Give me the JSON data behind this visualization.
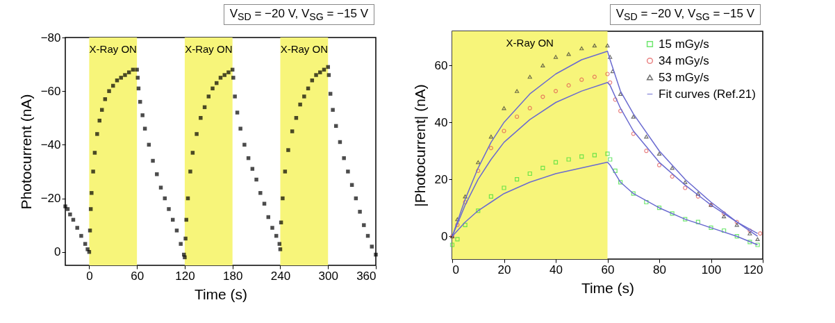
{
  "chart_data": [
    {
      "type": "scatter",
      "xlabel": "Time (s)",
      "ylabel": "Photocurrent (nA)",
      "annotations": [
        "V$_{SD}$ = −20 V, V$_{SG}$ = −15 V"
      ],
      "xlim": [
        -30,
        360
      ],
      "xticks": [
        0,
        60,
        120,
        180,
        240,
        300,
        360
      ],
      "ylim": [
        5,
        -80
      ],
      "yticks": [
        {
          "value": -80,
          "label": "−80"
        },
        {
          "value": -60,
          "label": "−60"
        },
        {
          "value": -40,
          "label": "−40"
        },
        {
          "value": -20,
          "label": "−20"
        },
        {
          "value": 0,
          "label": "0"
        }
      ],
      "grid": false,
      "legend": false,
      "bands": [
        {
          "axis": "x",
          "from": 0,
          "to": 60,
          "label": "X-Ray ON",
          "color": "#f7f57a"
        },
        {
          "axis": "x",
          "from": 120,
          "to": 180,
          "label": "X-Ray ON",
          "color": "#f7f57a"
        },
        {
          "axis": "x",
          "from": 240,
          "to": 300,
          "label": "X-Ray ON",
          "color": "#f7f57a"
        }
      ],
      "series": [
        {
          "color": "#000000",
          "marker": "square",
          "x": [
            -30,
            -27,
            -24,
            -20,
            -15,
            -10,
            -5,
            -2,
            0,
            1,
            2,
            3,
            5,
            7,
            10,
            13,
            16,
            20,
            25,
            30,
            35,
            40,
            45,
            50,
            55,
            60,
            61,
            62,
            64,
            67,
            70,
            75,
            80,
            85,
            90,
            95,
            100,
            105,
            110,
            115,
            119,
            120,
            121,
            122,
            124,
            127,
            130,
            135,
            140,
            145,
            150,
            155,
            160,
            165,
            170,
            175,
            180,
            181,
            183,
            186,
            190,
            195,
            200,
            205,
            210,
            215,
            220,
            225,
            230,
            235,
            239,
            240,
            241,
            243,
            246,
            250,
            255,
            260,
            265,
            270,
            275,
            280,
            285,
            290,
            295,
            300,
            301,
            303,
            306,
            310,
            315,
            320,
            325,
            330,
            335,
            340,
            345,
            350,
            355,
            360
          ],
          "values": [
            -17,
            -16,
            -14,
            -12,
            -9,
            -6,
            -3,
            -1,
            0,
            -8,
            -16,
            -22,
            -30,
            -37,
            -44,
            -49,
            -53,
            -57,
            -60,
            -62,
            -64,
            -65,
            -66,
            -67,
            -68,
            -68,
            -65,
            -61,
            -56,
            -51,
            -46,
            -40,
            -34,
            -29,
            -24,
            -20,
            -16,
            -12,
            -8,
            -3,
            1,
            2,
            -5,
            -12,
            -20,
            -30,
            -37,
            -44,
            -50,
            -54,
            -58,
            -61,
            -63,
            -65,
            -66,
            -67,
            -68,
            -65,
            -58,
            -52,
            -46,
            -40,
            -35,
            -31,
            -27,
            -22,
            -18,
            -13,
            -9,
            -6,
            -3,
            -1,
            -11,
            -20,
            -30,
            -38,
            -45,
            -50,
            -55,
            -58,
            -61,
            -64,
            -66,
            -67,
            -68,
            -69,
            -66,
            -59,
            -53,
            -47,
            -41,
            -35,
            -30,
            -25,
            -20,
            -15,
            -10,
            -6,
            -2,
            1
          ]
        }
      ]
    },
    {
      "type": "scatter",
      "xlabel": "Time (s)",
      "ylabel": "|Photocurrent| (nA)",
      "annotations": [
        "V$_{SD}$ = −20 V, V$_{SG}$ = −15 V"
      ],
      "xlim": [
        0,
        120
      ],
      "xticks": [
        0,
        20,
        40,
        60,
        80,
        100,
        120
      ],
      "ylim": [
        -8,
        72
      ],
      "yticks": [
        0,
        20,
        40,
        60
      ],
      "grid": false,
      "legend": "top right",
      "bands": [
        {
          "axis": "x",
          "from": 0,
          "to": 60,
          "label": "X-Ray ON",
          "color": "#f7f57a"
        }
      ],
      "series": [
        {
          "name": "15 mGy/s",
          "color": "#33dd33",
          "marker": "square",
          "x": [
            0,
            2,
            5,
            10,
            15,
            20,
            25,
            30,
            35,
            40,
            45,
            50,
            55,
            60,
            61,
            63,
            65,
            70,
            75,
            80,
            85,
            90,
            95,
            100,
            105,
            110,
            115,
            118
          ],
          "values": [
            -3,
            -1,
            4,
            9,
            14,
            17,
            20,
            22,
            24,
            26,
            27,
            28,
            28.5,
            29,
            27,
            23,
            19,
            15,
            12,
            10,
            8,
            6,
            5,
            3,
            2,
            0,
            -2,
            -3
          ]
        },
        {
          "name": "34 mGy/s",
          "color": "#e05050",
          "marker": "circle",
          "x": [
            0,
            2,
            5,
            10,
            15,
            20,
            25,
            30,
            35,
            40,
            45,
            50,
            55,
            60,
            61,
            63,
            65,
            70,
            75,
            80,
            85,
            90,
            95,
            100,
            105,
            110,
            115,
            119
          ],
          "values": [
            0,
            4,
            12,
            23,
            31,
            37,
            42,
            45,
            49,
            51,
            53,
            55,
            56,
            57,
            54,
            48,
            44,
            36,
            30,
            25,
            21,
            17,
            14,
            11,
            8,
            5,
            2,
            1
          ]
        },
        {
          "name": "53 mGy/s",
          "color": "#333333",
          "marker": "triangle",
          "x": [
            0,
            2,
            5,
            10,
            15,
            20,
            25,
            30,
            35,
            40,
            45,
            50,
            55,
            60,
            61,
            62,
            65,
            70,
            75,
            80,
            85,
            90,
            95,
            100,
            105,
            110,
            115,
            118
          ],
          "values": [
            0,
            6,
            14,
            26,
            35,
            45,
            51,
            56,
            60,
            63,
            64,
            66,
            67,
            67,
            63,
            58,
            50,
            42,
            35,
            29,
            24,
            19,
            15,
            11,
            7,
            4,
            1,
            -1
          ]
        },
        {
          "name": "Fit curves (Ref.21)",
          "type": "line",
          "color": "#6a6ad0",
          "x": [
            0,
            5,
            10,
            15,
            20,
            30,
            40,
            50,
            60,
            61,
            65,
            70,
            80,
            90,
            100,
            110,
            118
          ],
          "values": [
            0,
            5,
            9,
            12,
            15,
            19,
            22,
            24,
            26,
            25,
            19,
            15,
            10,
            6,
            3,
            0,
            -3
          ]
        },
        {
          "type": "line",
          "color": "#6a6ad0",
          "x": [
            0,
            5,
            10,
            15,
            20,
            30,
            40,
            50,
            60,
            61,
            65,
            70,
            80,
            90,
            100,
            110,
            118
          ],
          "values": [
            0,
            11,
            20,
            27,
            33,
            41,
            47,
            51,
            54,
            53,
            45,
            37,
            26,
            18,
            11,
            5,
            1
          ]
        },
        {
          "type": "line",
          "color": "#6a6ad0",
          "x": [
            0,
            5,
            10,
            15,
            20,
            30,
            40,
            50,
            60,
            61,
            65,
            70,
            80,
            90,
            100,
            110,
            118
          ],
          "values": [
            0,
            13,
            24,
            33,
            40,
            50,
            57,
            62,
            65,
            62,
            51,
            43,
            30,
            20,
            12,
            5,
            0
          ]
        }
      ]
    }
  ]
}
